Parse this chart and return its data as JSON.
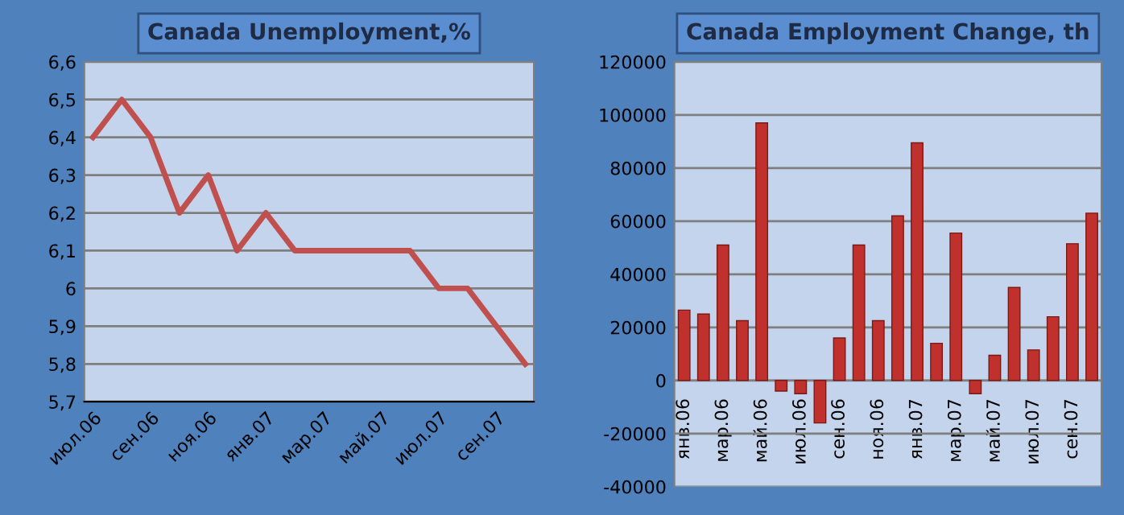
{
  "chart_data": [
    {
      "type": "line",
      "title": "Canada Unemployment,%",
      "categories": [
        "июл.06",
        null,
        "сен.06",
        null,
        "ноя.06",
        null,
        "янв.07",
        null,
        "мар.07",
        null,
        "май.07",
        null,
        "июл.07",
        null,
        "сен.07",
        null
      ],
      "series": [
        {
          "color": "#c0504d",
          "values": [
            6.4,
            6.5,
            6.4,
            6.2,
            6.3,
            6.1,
            6.2,
            6.1,
            6.1,
            6.1,
            6.1,
            6.1,
            6.0,
            6.0,
            5.9,
            5.8
          ]
        }
      ],
      "ylim": [
        5.7,
        6.6
      ],
      "yticks": [
        {
          "value": 5.7,
          "label": "5,7"
        },
        {
          "value": 5.8,
          "label": "5,8"
        },
        {
          "value": 5.9,
          "label": "5,9"
        },
        6,
        {
          "value": 6.1,
          "label": "6,1"
        },
        {
          "value": 6.2,
          "label": "6,2"
        },
        {
          "value": 6.3,
          "label": "6,3"
        },
        {
          "value": 6.4,
          "label": "6,4"
        },
        {
          "value": 6.5,
          "label": "6,5"
        },
        {
          "value": 6.6,
          "label": "6,6"
        }
      ],
      "grid": "y",
      "marker": "none",
      "line_style": "solid",
      "legend": false
    },
    {
      "type": "bar",
      "title": "Canada Employment Change, th",
      "categories": [
        "янв.06",
        null,
        "мар.06",
        null,
        "май.06",
        null,
        "июл.06",
        null,
        "сен.06",
        null,
        "ноя.06",
        null,
        "янв.07",
        null,
        "мар.07",
        null,
        "май.07",
        null,
        "июл.07",
        null,
        "сен.07",
        null
      ],
      "series": [
        {
          "color": "#c0302c",
          "values": [
            26500,
            25000,
            51000,
            22500,
            97000,
            -4000,
            -5000,
            -16000,
            16000,
            51000,
            22500,
            62000,
            89500,
            14000,
            55500,
            -5000,
            9500,
            35000,
            11500,
            24000,
            51500,
            63000
          ]
        }
      ],
      "ylim": [
        -40000,
        120000
      ],
      "yticks": [
        -40000,
        -20000,
        0,
        20000,
        40000,
        60000,
        80000,
        100000,
        120000
      ],
      "grid": "y",
      "legend": false
    }
  ]
}
